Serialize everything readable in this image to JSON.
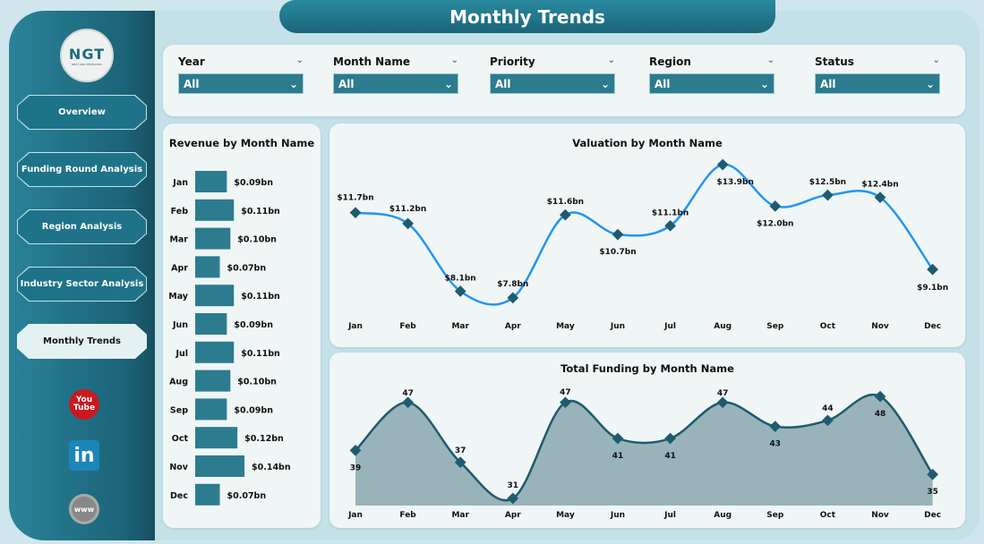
{
  "title": "Monthly Trends",
  "logo": {
    "text": "NGT",
    "sub": "NEXT GEN TEMPLATES"
  },
  "nav": [
    {
      "label": "Overview"
    },
    {
      "label": "Funding Round Analysis"
    },
    {
      "label": "Region Analysis"
    },
    {
      "label": "Industry Sector Analysis"
    },
    {
      "label": "Monthly Trends",
      "active": true
    }
  ],
  "social": [
    {
      "icon": "youtube-icon",
      "text": "You Tube"
    },
    {
      "icon": "linkedin-icon",
      "text": "in"
    },
    {
      "icon": "globe-icon",
      "text": "www"
    }
  ],
  "filters": [
    {
      "label": "Year",
      "value": "All"
    },
    {
      "label": "Month Name",
      "value": "All"
    },
    {
      "label": "Priority",
      "value": "All"
    },
    {
      "label": "Region",
      "value": "All"
    },
    {
      "label": "Status",
      "value": "All"
    }
  ],
  "colors": {
    "accent": "#2d7b8e",
    "line": "#2196f3",
    "area": "#1e5b6e"
  },
  "chart_data": [
    {
      "type": "bar",
      "title": "Revenue by Month Name",
      "categories": [
        "Jan",
        "Feb",
        "Mar",
        "Apr",
        "May",
        "Jun",
        "Jul",
        "Aug",
        "Sep",
        "Oct",
        "Nov",
        "Dec"
      ],
      "values": [
        0.09,
        0.11,
        0.1,
        0.07,
        0.11,
        0.09,
        0.11,
        0.1,
        0.09,
        0.12,
        0.14,
        0.07
      ],
      "labels": [
        "$0.09bn",
        "$0.11bn",
        "$0.10bn",
        "$0.07bn",
        "$0.11bn",
        "$0.09bn",
        "$0.11bn",
        "$0.10bn",
        "$0.09bn",
        "$0.12bn",
        "$0.14bn",
        "$0.07bn"
      ],
      "orientation": "horizontal"
    },
    {
      "type": "line",
      "title": "Valuation by Month Name",
      "categories": [
        "Jan",
        "Feb",
        "Mar",
        "Apr",
        "May",
        "Jun",
        "Jul",
        "Aug",
        "Sep",
        "Oct",
        "Nov",
        "Dec"
      ],
      "values": [
        11.7,
        11.2,
        8.1,
        7.8,
        11.6,
        10.7,
        11.1,
        13.9,
        12.0,
        12.5,
        12.4,
        9.1
      ],
      "labels": [
        "$11.7bn",
        "$11.2bn",
        "$8.1bn",
        "$7.8bn",
        "$11.6bn",
        "$10.7bn",
        "$11.1bn",
        "$13.9bn",
        "$12.0bn",
        "$12.5bn",
        "$12.4bn",
        "$9.1bn"
      ],
      "unit": "bn"
    },
    {
      "type": "area",
      "title": "Total Funding by Month Name",
      "categories": [
        "Jan",
        "Feb",
        "Mar",
        "Apr",
        "May",
        "Jun",
        "Jul",
        "Aug",
        "Sep",
        "Oct",
        "Nov",
        "Dec"
      ],
      "values": [
        39,
        47,
        37,
        31,
        47,
        41,
        41,
        47,
        43,
        44,
        48,
        35
      ],
      "labels": [
        "39",
        "47",
        "37",
        "31",
        "47",
        "41",
        "41",
        "47",
        "43",
        "44",
        "48",
        "35"
      ]
    }
  ]
}
